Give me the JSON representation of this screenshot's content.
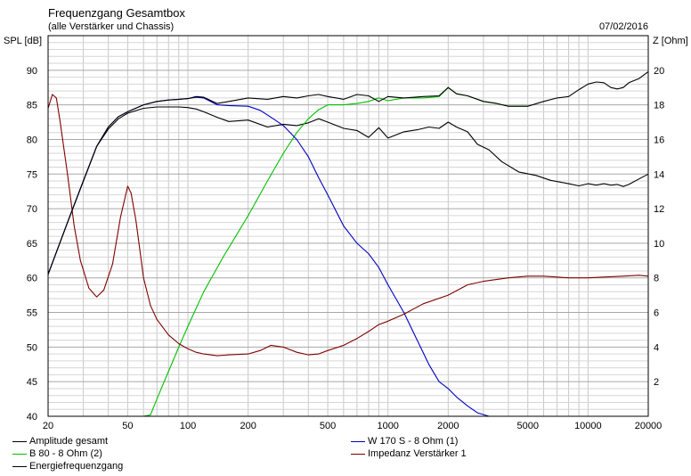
{
  "chart_data": {
    "type": "line",
    "title": "Frequenzgang Gesamtbox",
    "subtitle": "(alle Verstärker und Chassis)",
    "date": "07/02/2016",
    "ylabel_left": "SPL [dB]",
    "ylabel_right": "Z [Ohm]",
    "xscale": "log",
    "xlim": [
      20,
      20000
    ],
    "ylim_left": [
      40,
      95
    ],
    "ylim_right": [
      0,
      22
    ],
    "xticks": [
      "20",
      "50",
      "100",
      "200",
      "500",
      "1000",
      "2000",
      "5000",
      "10000",
      "20000"
    ],
    "yticks_left": [
      "40",
      "45",
      "50",
      "55",
      "60",
      "65",
      "70",
      "75",
      "80",
      "85",
      "90"
    ],
    "yticks_right": [
      "2",
      "4",
      "6",
      "8",
      "10",
      "12",
      "14",
      "16",
      "18",
      "20"
    ],
    "grid": true,
    "legend_position": "bottom",
    "series": [
      {
        "name": "Amplitude gesamt",
        "color": "#000000",
        "axis": "left",
        "points": [
          [
            20,
            60.5
          ],
          [
            25,
            68
          ],
          [
            30,
            74
          ],
          [
            35,
            79
          ],
          [
            40,
            81.5
          ],
          [
            45,
            83
          ],
          [
            50,
            83.8
          ],
          [
            60,
            84.5
          ],
          [
            70,
            84.7
          ],
          [
            80,
            84.7
          ],
          [
            90,
            84.7
          ],
          [
            100,
            84.6
          ],
          [
            110,
            84.4
          ],
          [
            120,
            84
          ],
          [
            140,
            83.2
          ],
          [
            160,
            82.6
          ],
          [
            200,
            82.8
          ],
          [
            250,
            81.8
          ],
          [
            300,
            82.2
          ],
          [
            350,
            82
          ],
          [
            400,
            82.4
          ],
          [
            450,
            83
          ],
          [
            500,
            82.5
          ],
          [
            600,
            81.6
          ],
          [
            700,
            81.3
          ],
          [
            800,
            80.3
          ],
          [
            900,
            81.7
          ],
          [
            1000,
            80.2
          ],
          [
            1200,
            81.1
          ],
          [
            1400,
            81.4
          ],
          [
            1600,
            81.8
          ],
          [
            1800,
            81.6
          ],
          [
            2000,
            82.5
          ],
          [
            2200,
            81.8
          ],
          [
            2500,
            81.1
          ],
          [
            2800,
            79.3
          ],
          [
            3200,
            78.5
          ],
          [
            3700,
            76.8
          ],
          [
            4500,
            75.3
          ],
          [
            5500,
            74.8
          ],
          [
            6500,
            74.1
          ],
          [
            8000,
            73.6
          ],
          [
            9000,
            73.3
          ],
          [
            10000,
            73.6
          ],
          [
            11000,
            73.4
          ],
          [
            12000,
            73.6
          ],
          [
            13000,
            73.4
          ],
          [
            14000,
            73.5
          ],
          [
            15000,
            73.2
          ],
          [
            16000,
            73.5
          ],
          [
            18000,
            74.3
          ],
          [
            20000,
            75
          ]
        ]
      },
      {
        "name": "B 80 - 8 Ohm (2)",
        "color": "#00c000",
        "axis": "left",
        "points": [
          [
            20,
            40
          ],
          [
            60,
            40
          ],
          [
            65,
            40.2
          ],
          [
            70,
            42.5
          ],
          [
            80,
            46.5
          ],
          [
            90,
            50
          ],
          [
            100,
            53
          ],
          [
            120,
            58
          ],
          [
            150,
            63
          ],
          [
            200,
            69
          ],
          [
            250,
            74
          ],
          [
            300,
            78
          ],
          [
            350,
            81
          ],
          [
            400,
            83
          ],
          [
            450,
            84.3
          ],
          [
            500,
            85
          ],
          [
            600,
            85
          ],
          [
            700,
            85.2
          ],
          [
            800,
            85.5
          ],
          [
            900,
            86
          ],
          [
            1000,
            85.6
          ],
          [
            1200,
            86
          ],
          [
            1500,
            86
          ],
          [
            1800,
            86.2
          ],
          [
            2000,
            87.5
          ],
          [
            2200,
            86.6
          ],
          [
            2500,
            86.3
          ],
          [
            3000,
            85.5
          ],
          [
            3500,
            85.2
          ],
          [
            4000,
            84.8
          ],
          [
            4500,
            84.8
          ],
          [
            5000,
            84.8
          ]
        ]
      },
      {
        "name": "W 170 S - 8 Ohm (1)",
        "color": "#0000c0",
        "axis": "left",
        "points": [
          [
            20,
            60.5
          ],
          [
            25,
            68
          ],
          [
            30,
            74
          ],
          [
            35,
            79
          ],
          [
            40,
            81.8
          ],
          [
            45,
            83.3
          ],
          [
            50,
            84
          ],
          [
            60,
            85
          ],
          [
            70,
            85.5
          ],
          [
            80,
            85.7
          ],
          [
            90,
            85.8
          ],
          [
            100,
            85.9
          ],
          [
            110,
            86.1
          ],
          [
            120,
            86
          ],
          [
            140,
            85
          ],
          [
            160,
            84.9
          ],
          [
            200,
            84.8
          ],
          [
            230,
            84.2
          ],
          [
            260,
            83.2
          ],
          [
            300,
            82
          ],
          [
            350,
            80
          ],
          [
            400,
            77.5
          ],
          [
            450,
            74.5
          ],
          [
            500,
            72
          ],
          [
            600,
            67.5
          ],
          [
            700,
            65
          ],
          [
            800,
            63.5
          ],
          [
            900,
            61.5
          ],
          [
            1000,
            59
          ],
          [
            1200,
            55
          ],
          [
            1400,
            51
          ],
          [
            1600,
            47.5
          ],
          [
            1800,
            45
          ],
          [
            2000,
            44
          ],
          [
            2200,
            42.8
          ],
          [
            2500,
            41.5
          ],
          [
            2800,
            40.5
          ],
          [
            3200,
            40
          ],
          [
            20000,
            40
          ]
        ]
      },
      {
        "name": "Impedanz Verstärker 1",
        "color": "#800000",
        "axis": "right",
        "points": [
          [
            20,
            17.8
          ],
          [
            21,
            18.6
          ],
          [
            22,
            18.4
          ],
          [
            23,
            17
          ],
          [
            25,
            14
          ],
          [
            27,
            11
          ],
          [
            29,
            9
          ],
          [
            32,
            7.4
          ],
          [
            35,
            6.9
          ],
          [
            38,
            7.3
          ],
          [
            42,
            8.8
          ],
          [
            46,
            11.5
          ],
          [
            50,
            13.3
          ],
          [
            52,
            12.9
          ],
          [
            55,
            11.3
          ],
          [
            60,
            8
          ],
          [
            65,
            6.4
          ],
          [
            70,
            5.6
          ],
          [
            80,
            4.7
          ],
          [
            90,
            4.2
          ],
          [
            100,
            3.9
          ],
          [
            110,
            3.7
          ],
          [
            120,
            3.6
          ],
          [
            140,
            3.5
          ],
          [
            160,
            3.55
          ],
          [
            200,
            3.6
          ],
          [
            230,
            3.8
          ],
          [
            260,
            4.1
          ],
          [
            300,
            4
          ],
          [
            350,
            3.7
          ],
          [
            400,
            3.55
          ],
          [
            450,
            3.6
          ],
          [
            500,
            3.8
          ],
          [
            600,
            4.1
          ],
          [
            700,
            4.5
          ],
          [
            800,
            4.9
          ],
          [
            900,
            5.3
          ],
          [
            1000,
            5.5
          ],
          [
            1200,
            5.9
          ],
          [
            1500,
            6.5
          ],
          [
            2000,
            7
          ],
          [
            2500,
            7.6
          ],
          [
            3000,
            7.8
          ],
          [
            4000,
            8.0
          ],
          [
            5000,
            8.1
          ],
          [
            6000,
            8.1
          ],
          [
            7000,
            8.05
          ],
          [
            8000,
            8.0
          ],
          [
            10000,
            8.0
          ],
          [
            12000,
            8.05
          ],
          [
            15000,
            8.1
          ],
          [
            18000,
            8.15
          ],
          [
            20000,
            8.1
          ]
        ]
      },
      {
        "name": "Energiefrequenzgang",
        "color": "#000000",
        "axis": "left",
        "points": [
          [
            20,
            60.5
          ],
          [
            25,
            68
          ],
          [
            30,
            74
          ],
          [
            35,
            79
          ],
          [
            40,
            81.8
          ],
          [
            45,
            83.3
          ],
          [
            50,
            84
          ],
          [
            60,
            85
          ],
          [
            70,
            85.5
          ],
          [
            80,
            85.7
          ],
          [
            90,
            85.8
          ],
          [
            100,
            85.9
          ],
          [
            110,
            86.2
          ],
          [
            120,
            86.1
          ],
          [
            140,
            85.2
          ],
          [
            160,
            85.5
          ],
          [
            200,
            86
          ],
          [
            250,
            85.8
          ],
          [
            300,
            86.2
          ],
          [
            350,
            86
          ],
          [
            400,
            86.3
          ],
          [
            450,
            86.5
          ],
          [
            500,
            86.2
          ],
          [
            600,
            85.8
          ],
          [
            700,
            86.5
          ],
          [
            800,
            86.3
          ],
          [
            900,
            85.5
          ],
          [
            1000,
            86.2
          ],
          [
            1200,
            86
          ],
          [
            1500,
            86.2
          ],
          [
            1800,
            86.3
          ],
          [
            2000,
            87.5
          ],
          [
            2200,
            86.6
          ],
          [
            2500,
            86.3
          ],
          [
            3000,
            85.5
          ],
          [
            3500,
            85.2
          ],
          [
            4000,
            84.8
          ],
          [
            5000,
            84.8
          ],
          [
            6000,
            85.5
          ],
          [
            7000,
            86
          ],
          [
            8000,
            86.2
          ],
          [
            9000,
            87.2
          ],
          [
            10000,
            88
          ],
          [
            11000,
            88.3
          ],
          [
            12000,
            88.2
          ],
          [
            13000,
            87.5
          ],
          [
            14000,
            87.3
          ],
          [
            15000,
            87.5
          ],
          [
            16000,
            88.2
          ],
          [
            18000,
            88.8
          ],
          [
            20000,
            89.8
          ]
        ]
      }
    ]
  },
  "legend": {
    "items": [
      {
        "label": "Amplitude gesamt",
        "color": "#000000"
      },
      {
        "label": "B 80 - 8 Ohm (2)",
        "color": "#00c000"
      },
      {
        "label": "Energiefrequenzgang",
        "color": "#000000"
      },
      {
        "label": "W 170 S - 8 Ohm (1)",
        "color": "#0000c0"
      },
      {
        "label": "Impedanz Verstärker 1",
        "color": "#800000"
      }
    ]
  }
}
